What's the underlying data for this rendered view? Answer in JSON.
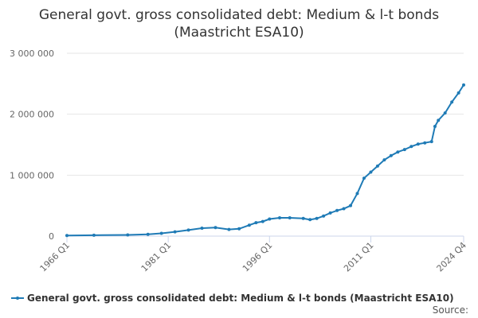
{
  "chart_data": {
    "type": "line",
    "title": "General govt. gross consolidated debt: Medium & l-t bonds (Maastricht ESA10)",
    "x": [
      1966,
      1970,
      1975,
      1978,
      1980,
      1982,
      1984,
      1986,
      1988,
      1990,
      1991.5,
      1993,
      1994,
      1995,
      1996,
      1997.5,
      1999,
      2001,
      2002,
      2003,
      2004,
      2005,
      2006,
      2007,
      2008,
      2009,
      2010,
      2011,
      2012,
      2013,
      2014,
      2015,
      2016,
      2017,
      2018,
      2019,
      2020,
      2020.5,
      2021,
      2022,
      2023,
      2024,
      2024.75
    ],
    "series": [
      {
        "name": "General govt. gross consolidated debt: Medium & l-t bonds (Maastricht ESA10)",
        "color": "#1f7bb6",
        "values": [
          10000,
          15000,
          20000,
          30000,
          45000,
          70000,
          100000,
          130000,
          140000,
          110000,
          120000,
          180000,
          220000,
          240000,
          280000,
          300000,
          300000,
          290000,
          270000,
          290000,
          330000,
          380000,
          420000,
          450000,
          500000,
          700000,
          950000,
          1050000,
          1150000,
          1250000,
          1320000,
          1380000,
          1420000,
          1470000,
          1510000,
          1530000,
          1550000,
          1800000,
          1900000,
          2020000,
          2200000,
          2350000,
          2480000
        ]
      }
    ],
    "xlim": [
      1966,
      2024.75
    ],
    "xticks": [
      {
        "value": 1966,
        "label": "1966 Q1"
      },
      {
        "value": 1981,
        "label": "1981 Q1"
      },
      {
        "value": 1996,
        "label": "1996 Q1"
      },
      {
        "value": 2011,
        "label": "2011 Q1"
      },
      {
        "value": 2024.75,
        "label": "2024 Q4"
      }
    ],
    "ylim": [
      0,
      3000000
    ],
    "yticks": [
      0,
      {
        "value": 1000000,
        "label": "1 000 000"
      },
      {
        "value": 2000000,
        "label": "2 000 000"
      },
      {
        "value": 3000000,
        "label": "3 000 000"
      }
    ],
    "grid": true,
    "source": "Source:"
  }
}
